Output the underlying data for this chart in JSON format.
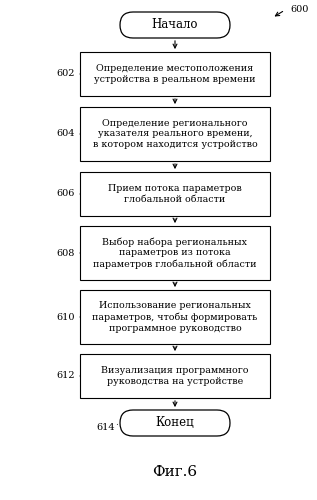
{
  "title": "Фиг.6",
  "ref_number": "600",
  "start_label": "Начало",
  "end_label": "Конец",
  "steps": [
    {
      "id": "602",
      "text": "Определение местоположения\nустройства в реальном времени"
    },
    {
      "id": "604",
      "text": "Определение регионального\nуказателя реального времени,\nв котором находится устройство"
    },
    {
      "id": "606",
      "text": "Прием потока параметров\nглобальной области"
    },
    {
      "id": "608",
      "text": "Выбор набора региональных\nпараметров из потока\nпараметров глобальной области"
    },
    {
      "id": "610",
      "text": "Использование региональных\nпараметров, чтобы формировать\nпрограммное руководство"
    },
    {
      "id": "612",
      "text": "Визуализация программного\nруководства на устройстве"
    }
  ],
  "bg_color": "#ffffff",
  "box_color": "#ffffff",
  "box_edge_color": "#000000",
  "arrow_color": "#000000",
  "text_color": "#000000",
  "label_color": "#000000",
  "font_size": 6.8,
  "label_font_size": 7.0,
  "title_font_size": 11.0,
  "pill_font_size": 8.5
}
